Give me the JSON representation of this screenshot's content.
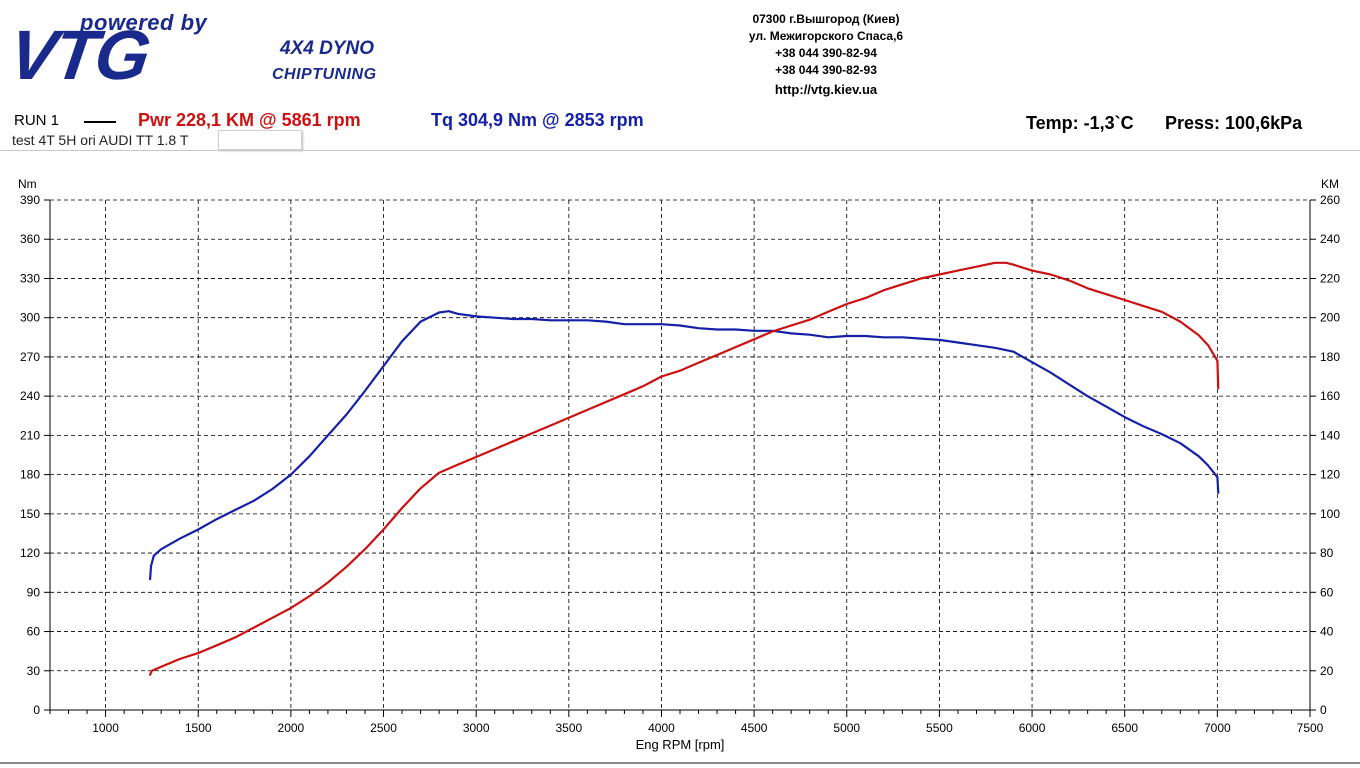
{
  "header": {
    "logo_powered": "powered by",
    "logo_brand": "VTG",
    "logo_line1": "4X4 DYNO",
    "logo_line2": "CHIPTUNING",
    "address_lines": [
      "07300 г.Вышгород (Киев)",
      "ул. Межигорского Спаса,6",
      "+38 044 390-82-94",
      "+38 044 390-82-93",
      "http://vtg.kiev.ua"
    ]
  },
  "run": {
    "label": "RUN 1",
    "pwr": "Pwr  228,1 KM @ 5861 rpm",
    "tq": "Tq 304,9 Nm @ 2853 rpm",
    "temp": "Temp: -1,3`C",
    "press": "Press: 100,6kPa",
    "test": "test  4T 5H  ori AUDI TT 1.8 T"
  },
  "colors": {
    "power": "#cc1111",
    "torque": "#1520a8",
    "brand": "#1a2a8c"
  },
  "chart_data": {
    "type": "line",
    "xlabel": "Eng RPM [rpm]",
    "ylabel_left": "Nm",
    "ylabel_right": "KM",
    "xlim": [
      700,
      7500
    ],
    "ylim_left": [
      0,
      390
    ],
    "ylim_right": [
      0,
      260
    ],
    "x_ticks": [
      1000,
      1500,
      2000,
      2500,
      3000,
      3500,
      4000,
      4500,
      5000,
      5500,
      6000,
      6500,
      7000,
      7500
    ],
    "y_ticks_left": [
      0,
      30,
      60,
      90,
      120,
      150,
      180,
      210,
      240,
      270,
      300,
      330,
      360,
      390
    ],
    "y_ticks_right": [
      0,
      20,
      40,
      60,
      80,
      100,
      120,
      140,
      160,
      180,
      200,
      220,
      240,
      260
    ],
    "grid": true,
    "series": [
      {
        "name": "Tq",
        "axis": "left",
        "color": "#1520a8",
        "x": [
          1240,
          1245,
          1260,
          1300,
          1400,
          1500,
          1600,
          1700,
          1800,
          1900,
          2000,
          2100,
          2200,
          2300,
          2400,
          2500,
          2600,
          2700,
          2800,
          2853,
          2900,
          3000,
          3100,
          3200,
          3300,
          3400,
          3500,
          3600,
          3700,
          3800,
          3900,
          4000,
          4100,
          4200,
          4300,
          4400,
          4500,
          4600,
          4700,
          4800,
          4900,
          5000,
          5100,
          5200,
          5300,
          5400,
          5500,
          5600,
          5700,
          5800,
          5900,
          6000,
          6100,
          6200,
          6300,
          6400,
          6500,
          6600,
          6700,
          6800,
          6900,
          6950,
          7000,
          7005
        ],
        "y": [
          100,
          110,
          118,
          123,
          131,
          138,
          146,
          153,
          160,
          169,
          180,
          194,
          210,
          226,
          244,
          263,
          282,
          297,
          304,
          305,
          303,
          301,
          300,
          299,
          299,
          298,
          298,
          298,
          297,
          295,
          295,
          295,
          294,
          292,
          291,
          291,
          290,
          290,
          288,
          287,
          285,
          286,
          286,
          285,
          285,
          284,
          283,
          281,
          279,
          277,
          274,
          266,
          258,
          249,
          240,
          232,
          224,
          217,
          211,
          204,
          194,
          187,
          178,
          166
        ]
      },
      {
        "name": "Pwr",
        "axis": "right",
        "color": "#cc1111",
        "x": [
          1240,
          1250,
          1300,
          1400,
          1500,
          1600,
          1700,
          1800,
          1900,
          2000,
          2100,
          2200,
          2300,
          2400,
          2500,
          2600,
          2700,
          2800,
          2900,
          3000,
          3100,
          3200,
          3300,
          3400,
          3500,
          3600,
          3700,
          3800,
          3900,
          4000,
          4100,
          4200,
          4300,
          4400,
          4500,
          4600,
          4700,
          4800,
          4900,
          5000,
          5100,
          5200,
          5300,
          5400,
          5500,
          5600,
          5700,
          5800,
          5861,
          5900,
          6000,
          6100,
          6200,
          6300,
          6400,
          6500,
          6600,
          6700,
          6800,
          6900,
          6950,
          7000,
          7005
        ],
        "y": [
          18,
          20,
          22,
          26,
          29,
          33,
          37,
          42,
          47,
          52,
          58,
          65,
          73,
          82,
          92,
          103,
          113,
          121,
          125,
          129,
          133,
          137,
          141,
          145,
          149,
          153,
          157,
          161,
          165,
          170,
          173,
          177,
          181,
          185,
          189,
          193,
          196,
          199,
          203,
          207,
          210,
          214,
          217,
          220,
          222,
          224,
          226,
          228,
          228,
          227,
          224,
          222,
          219,
          215,
          212,
          209,
          206,
          203,
          198,
          191,
          186,
          178,
          164
        ]
      }
    ]
  }
}
